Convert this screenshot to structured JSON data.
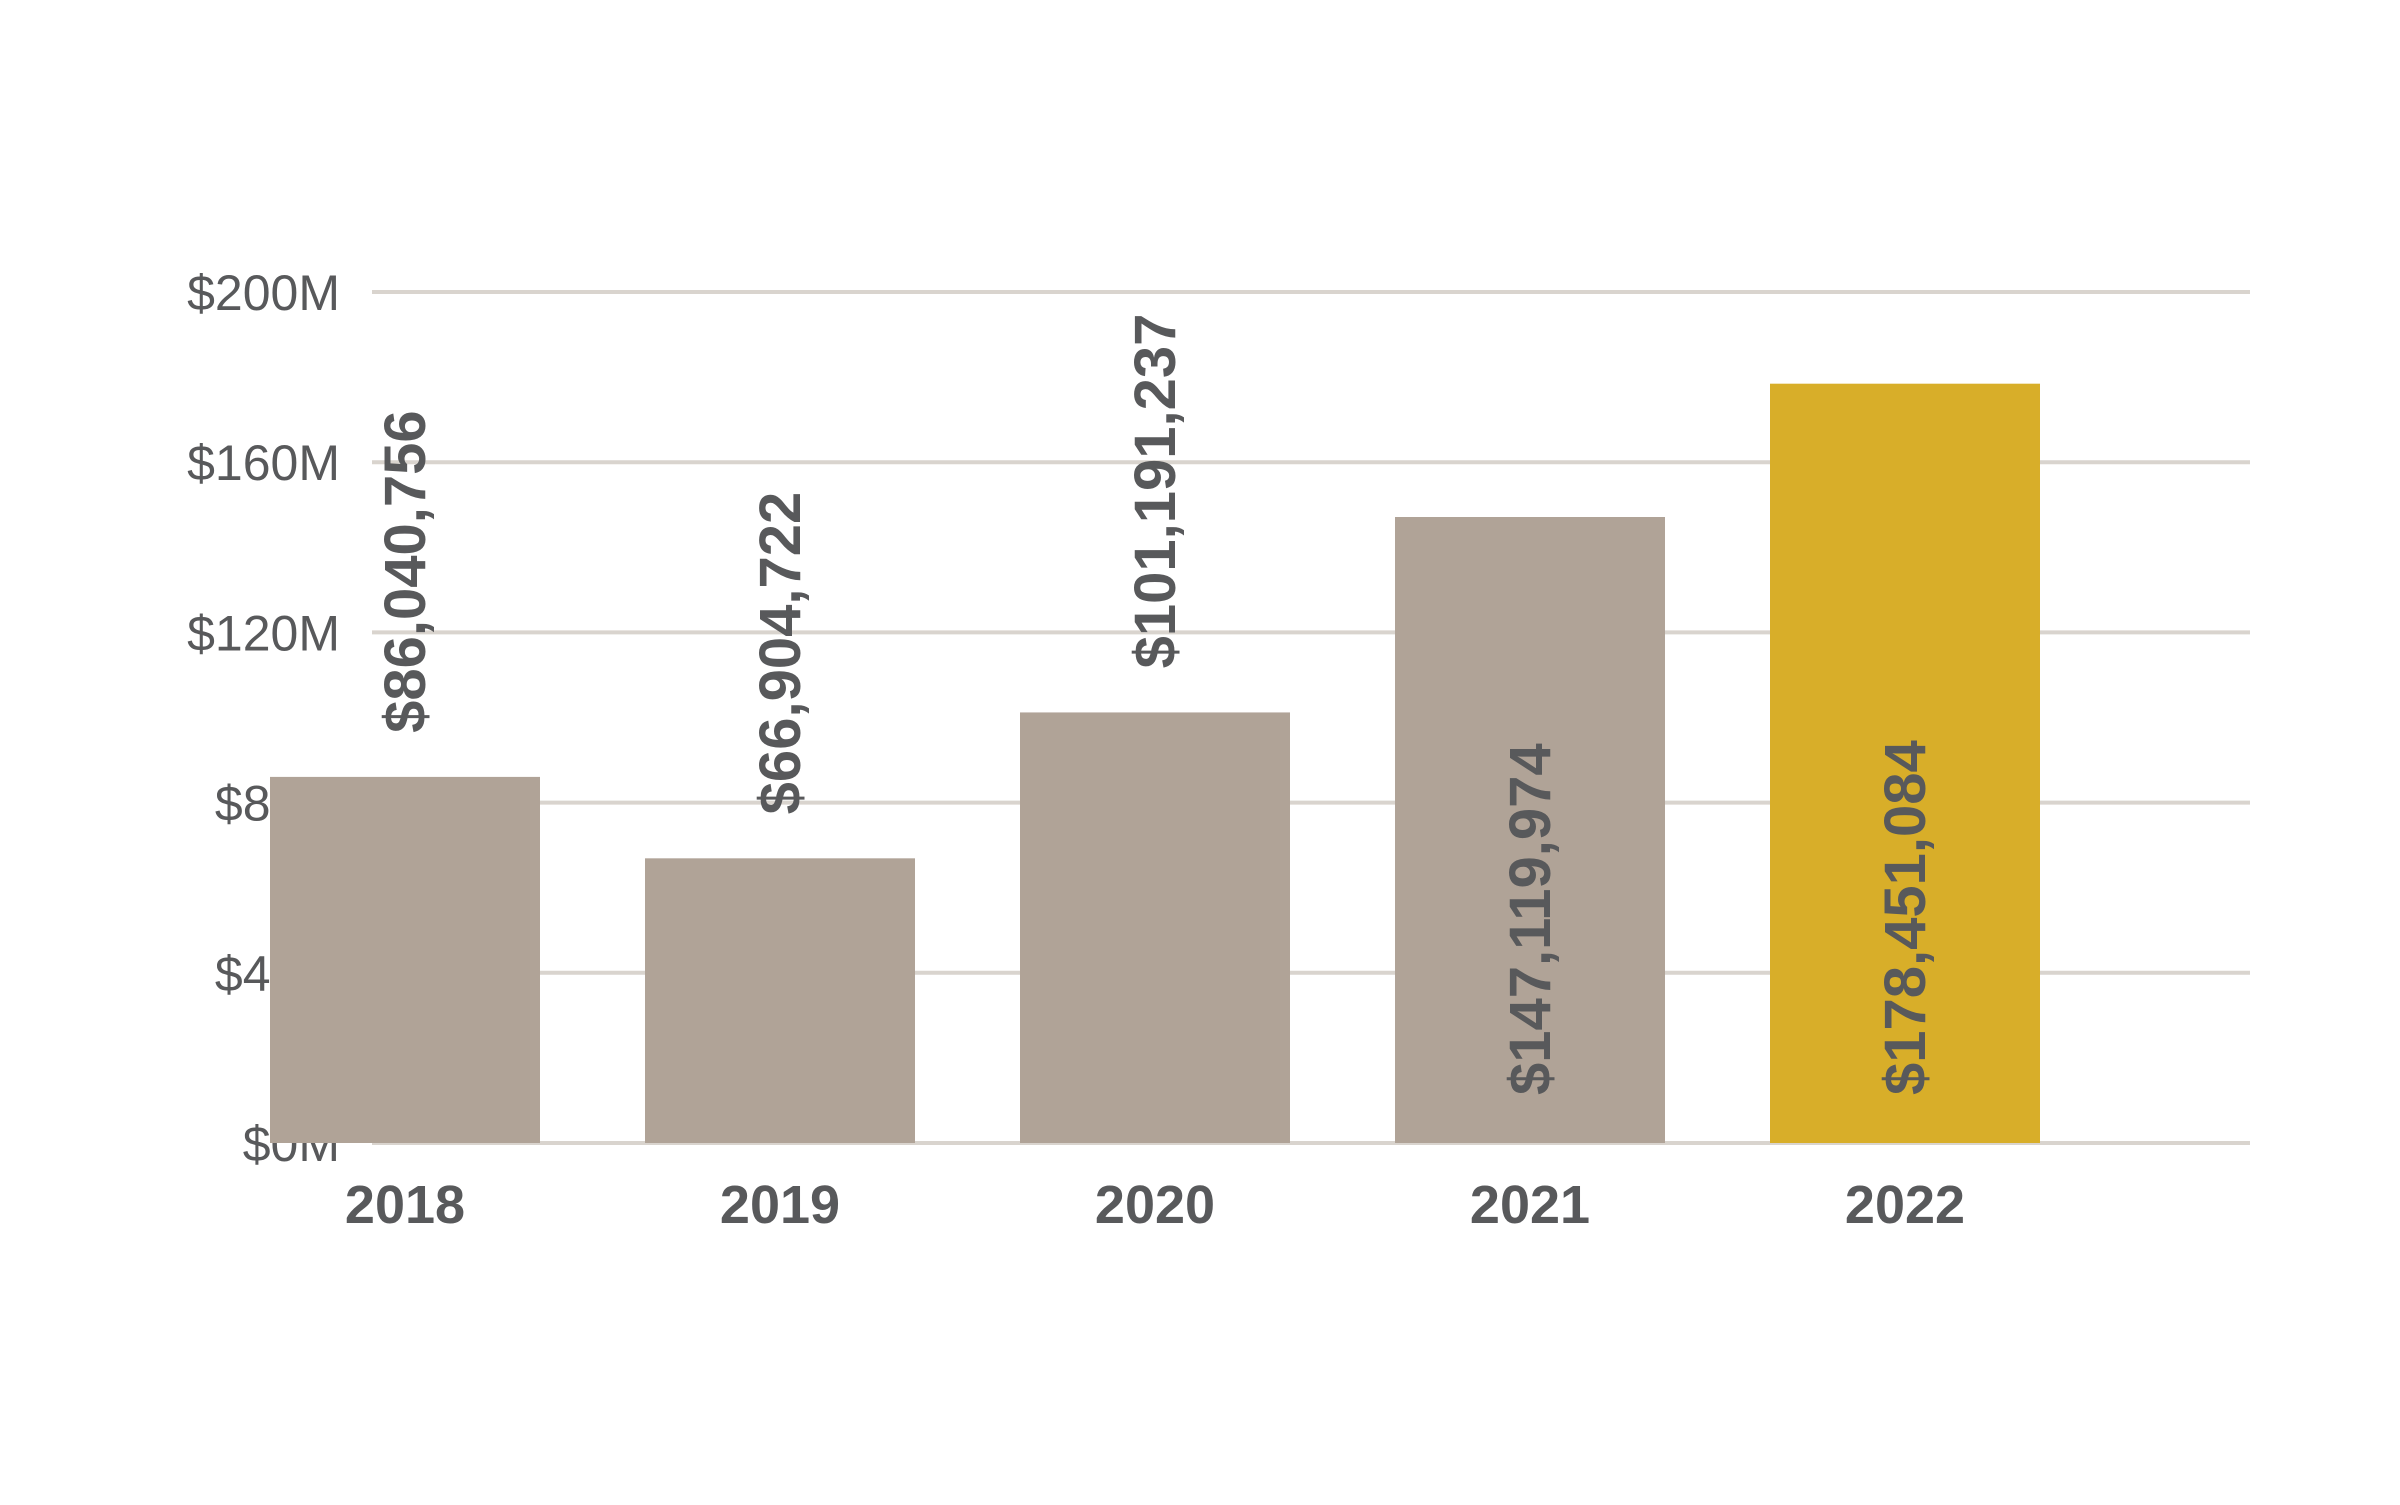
{
  "chart_data": {
    "type": "bar",
    "categories": [
      "2018",
      "2019",
      "2020",
      "2021",
      "2022"
    ],
    "values": [
      86040756,
      66904722,
      101191237,
      147119974,
      178451084
    ],
    "data_labels": [
      "$86,040,756",
      "$66,904,722",
      "$101,191,237",
      "$147,119,974",
      "$178,451,084"
    ],
    "label_inside_bar": [
      false,
      false,
      false,
      true,
      true
    ],
    "highlight_index": 4,
    "title": "",
    "xlabel": "",
    "ylabel": "",
    "ylim": [
      0,
      200000000
    ],
    "y_ticks": [
      0,
      40000000,
      80000000,
      120000000,
      160000000,
      200000000
    ],
    "y_tick_labels": [
      "$0M",
      "$40M",
      "$80M",
      "$120M",
      "$160M",
      "$200M"
    ],
    "grid": true,
    "legend": "none",
    "colors": {
      "bar": "#b0a397",
      "highlight": "#d8ae29",
      "grid": "#d9d4ce",
      "text": "#58595b",
      "label_inside": "#58595b"
    }
  }
}
